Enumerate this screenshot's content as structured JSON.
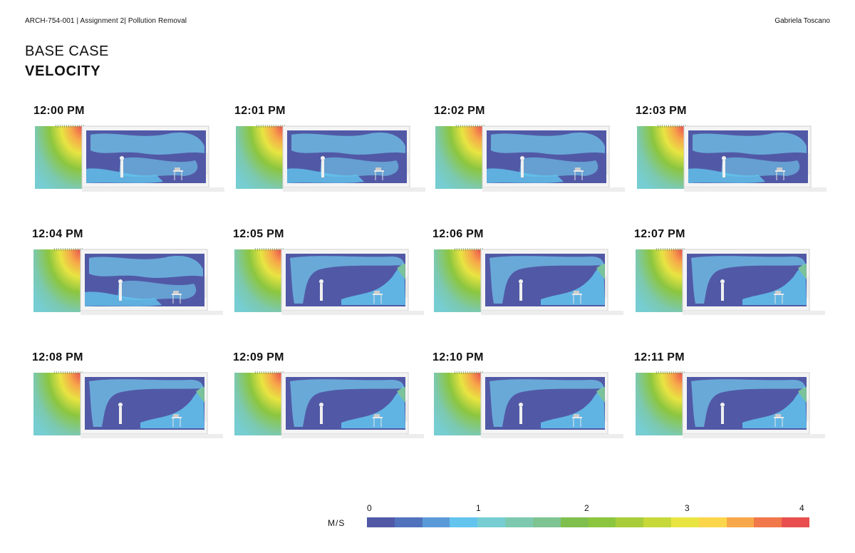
{
  "header": {
    "left": "ARCH-754-001  | Assignment 2|  Pollution Removal",
    "right": "Gabriela Toscano"
  },
  "title": {
    "line1": "BASE CASE",
    "line2": "VELOCITY"
  },
  "panels": [
    {
      "time": "12:00 PM",
      "pattern": "a"
    },
    {
      "time": "12:01 PM",
      "pattern": "a"
    },
    {
      "time": "12:02 PM",
      "pattern": "a"
    },
    {
      "time": "12:03 PM",
      "pattern": "a"
    },
    {
      "time": "12:04 PM",
      "pattern": "a"
    },
    {
      "time": "12:05 PM",
      "pattern": "b"
    },
    {
      "time": "12:06 PM",
      "pattern": "b"
    },
    {
      "time": "12:07 PM",
      "pattern": "b"
    },
    {
      "time": "12:08 PM",
      "pattern": "b"
    },
    {
      "time": "12:09 PM",
      "pattern": "b"
    },
    {
      "time": "12:10 PM",
      "pattern": "b"
    },
    {
      "time": "12:11 PM",
      "pattern": "b"
    }
  ],
  "legend": {
    "unit": "M/S",
    "ticks": [
      "0",
      "1",
      "2",
      "3",
      "4"
    ],
    "colors": [
      "#5159a6",
      "#5173bd",
      "#5b9ad8",
      "#63c4ee",
      "#76cdd2",
      "#7cc9b0",
      "#7ec493",
      "#7fbf4e",
      "#8cc63f",
      "#a8cc3a",
      "#c6d939",
      "#e8e442",
      "#fcd64a",
      "#f7a84a",
      "#f1784a",
      "#e94f4f"
    ]
  }
}
